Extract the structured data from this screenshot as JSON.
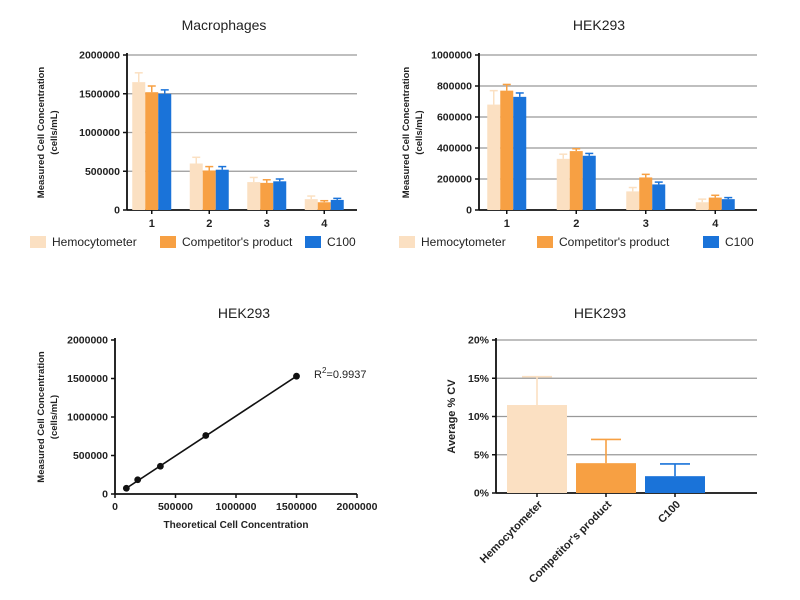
{
  "colors": {
    "hemocytometer": "#fbe0c2",
    "competitor": "#f7a043",
    "c100": "#1a73d9",
    "axis": "#111111",
    "grid": "#999999"
  },
  "chart_data": [
    {
      "id": "macrophages",
      "type": "bar",
      "title": "Macrophages",
      "xlabel": "",
      "ylabel_line1": "Measured Cell Concentration",
      "ylabel_line2": "(cells/mL)",
      "ylim": [
        0,
        2000000
      ],
      "yticks": [
        0,
        500000,
        1000000,
        1500000,
        2000000
      ],
      "ytick_labels": [
        "0",
        "500000",
        "1000000",
        "1500000",
        "2000000"
      ],
      "grid": true,
      "categories": [
        "1",
        "2",
        "3",
        "4"
      ],
      "series": [
        {
          "name": "Hemocytometer",
          "color_key": "hemocytometer",
          "values": [
            1650000,
            600000,
            360000,
            140000
          ],
          "errors": [
            120000,
            80000,
            60000,
            40000
          ]
        },
        {
          "name": "Competitor's product",
          "color_key": "competitor",
          "values": [
            1520000,
            510000,
            350000,
            100000
          ],
          "errors": [
            80000,
            50000,
            40000,
            20000
          ]
        },
        {
          "name": "C100",
          "color_key": "c100",
          "values": [
            1500000,
            520000,
            370000,
            130000
          ],
          "errors": [
            50000,
            40000,
            30000,
            20000
          ]
        }
      ],
      "legend_position": "bottom"
    },
    {
      "id": "hek293-bars",
      "type": "bar",
      "title": "HEK293",
      "xlabel": "",
      "ylabel_line1": "Measured Cell Concentration",
      "ylabel_line2": "(cells/mL)",
      "ylim": [
        0,
        1000000
      ],
      "yticks": [
        0,
        200000,
        400000,
        600000,
        800000,
        1000000
      ],
      "ytick_labels": [
        "0",
        "200000",
        "400000",
        "600000",
        "800000",
        "1000000"
      ],
      "grid": true,
      "categories": [
        "1",
        "2",
        "3",
        "4"
      ],
      "series": [
        {
          "name": "Hemocytometer",
          "color_key": "hemocytometer",
          "values": [
            680000,
            330000,
            120000,
            50000
          ],
          "errors": [
            90000,
            30000,
            25000,
            20000
          ]
        },
        {
          "name": "Competitor's product",
          "color_key": "competitor",
          "values": [
            770000,
            380000,
            210000,
            80000
          ],
          "errors": [
            40000,
            15000,
            20000,
            15000
          ]
        },
        {
          "name": "C100",
          "color_key": "c100",
          "values": [
            730000,
            350000,
            165000,
            70000
          ],
          "errors": [
            25000,
            15000,
            15000,
            10000
          ]
        }
      ],
      "legend_position": "bottom"
    },
    {
      "id": "hek293-linearity",
      "type": "scatter",
      "title": "HEK293",
      "xlabel": "Theoretical Cell Concentration",
      "ylabel_line1": "Measured Cell Concentration",
      "ylabel_line2": "(cells/mL)",
      "xlim": [
        0,
        2000000
      ],
      "ylim": [
        0,
        2000000
      ],
      "xticks": [
        0,
        500000,
        1000000,
        1500000,
        2000000
      ],
      "xtick_labels": [
        "0",
        "500000",
        "1000000",
        "1500000",
        "2000000"
      ],
      "yticks": [
        0,
        500000,
        1000000,
        1500000,
        2000000
      ],
      "ytick_labels": [
        "0",
        "500000",
        "1000000",
        "1500000",
        "2000000"
      ],
      "grid": false,
      "points": [
        {
          "x": 93750,
          "y": 75000
        },
        {
          "x": 187500,
          "y": 185000
        },
        {
          "x": 375000,
          "y": 360000
        },
        {
          "x": 750000,
          "y": 760000
        },
        {
          "x": 1500000,
          "y": 1530000
        }
      ],
      "fit_line": true,
      "annotation_r": "R",
      "annotation_sup": "2",
      "annotation_value": "=0.9937"
    },
    {
      "id": "hek293-cv",
      "type": "bar",
      "title": "HEK293",
      "xlabel": "",
      "ylabel": "Average % CV",
      "ylim": [
        0,
        20
      ],
      "yticks": [
        0,
        5,
        10,
        15,
        20
      ],
      "ytick_labels": [
        "0%",
        "5%",
        "10%",
        "15%",
        "20%"
      ],
      "grid": true,
      "categories": [
        "Hemocytometer",
        "Competitor's product",
        "C100"
      ],
      "values": [
        11.5,
        3.9,
        2.2
      ],
      "errors": [
        3.7,
        3.1,
        1.6
      ],
      "color_keys": [
        "hemocytometer",
        "competitor",
        "c100"
      ]
    }
  ]
}
